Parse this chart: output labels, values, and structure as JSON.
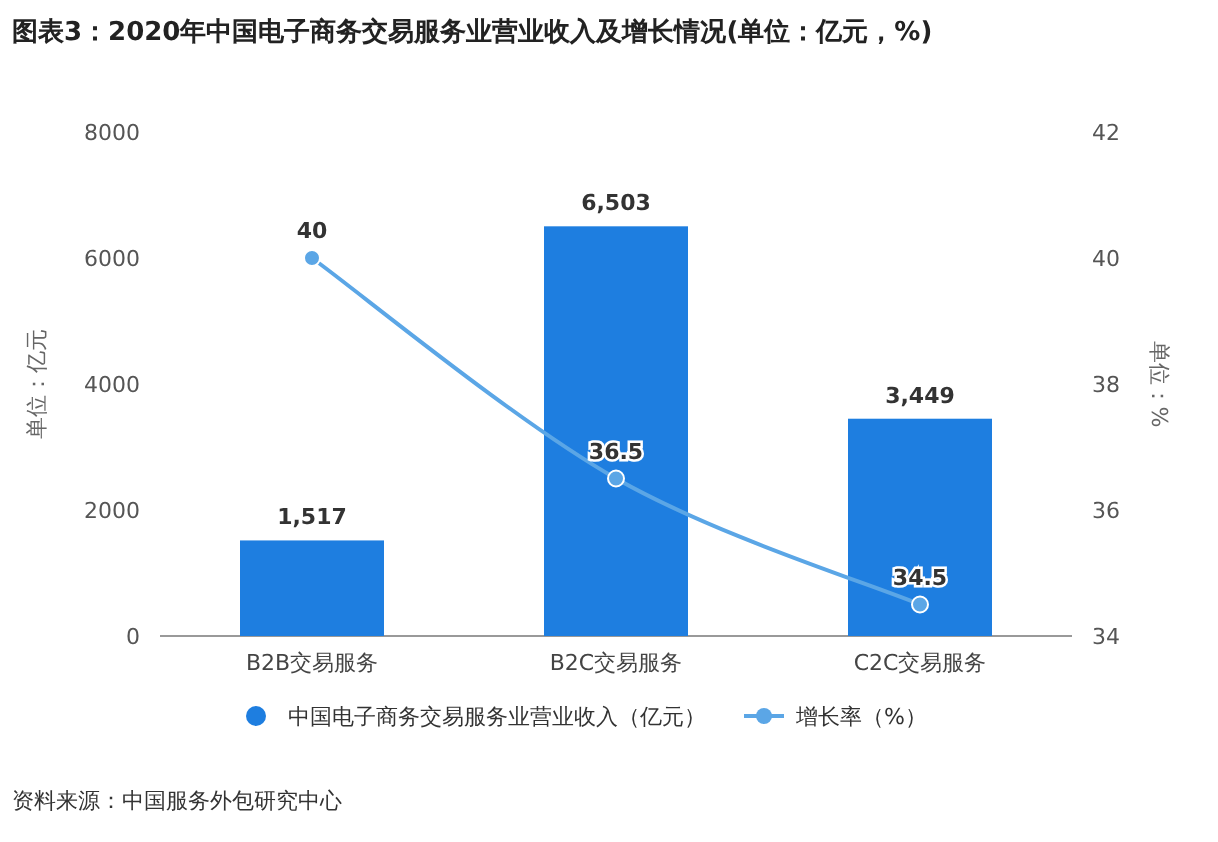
{
  "chart_data": {
    "type": "bar",
    "title": "图表3：2020年中国电子商务交易服务业营业收入及增长情况(单位：亿元，%)",
    "ylabel": "单位：亿元",
    "y2label": "单位：%",
    "categories": [
      "B2B交易服务",
      "B2C交易服务",
      "C2C交易服务"
    ],
    "series": [
      {
        "name": "中国电子商务交易服务业营业收入（亿元）",
        "color": "#1e7ee0",
        "values": [
          1517,
          6503,
          3449
        ],
        "value_labels": [
          "1,517",
          "6,503",
          "3,449"
        ]
      },
      {
        "name": "增长率（%）",
        "type": "line",
        "axis": "y2",
        "color": "#5ba6e6",
        "values": [
          40,
          36.5,
          34.5
        ],
        "value_labels": [
          "40",
          "36.5",
          "34.5"
        ],
        "marker": "circle",
        "line_style": "solid"
      }
    ],
    "ylim": [
      0,
      8000
    ],
    "yticks": [
      0,
      2000,
      4000,
      6000,
      8000
    ],
    "y2lim": [
      34,
      42
    ],
    "y2ticks": [
      34,
      36,
      38,
      40,
      42
    ],
    "legend": "bottom",
    "annotations": [
      "资料来源：中国服务外包研究中心"
    ]
  }
}
